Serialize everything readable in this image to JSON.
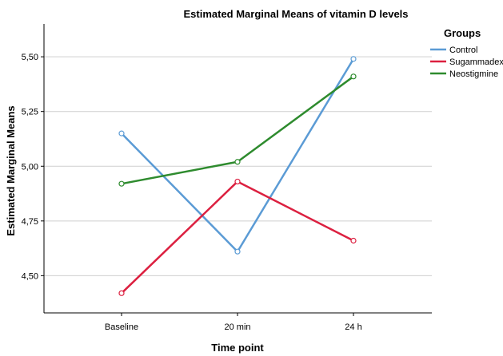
{
  "chart_data": {
    "type": "line",
    "title": "Estimated Marginal Means of vitamin D levels",
    "xlabel": "Time point",
    "ylabel": "Estimated Marginal Means",
    "categories": [
      "Baseline",
      "20 min",
      "24 h"
    ],
    "ylim": [
      4.33,
      5.65
    ],
    "yticks": [
      4.5,
      4.75,
      5.0,
      5.25,
      5.5
    ],
    "ytick_labels": [
      "4,50",
      "4,75",
      "5,00",
      "5,25",
      "5,50"
    ],
    "grid": "horizontal",
    "legend": {
      "title": "Groups",
      "placement": "right"
    },
    "series": [
      {
        "name": "Control",
        "color": "#5b9bd5",
        "values": [
          5.15,
          4.61,
          5.49
        ]
      },
      {
        "name": "Sugammadex",
        "color": "#dc2040",
        "values": [
          4.42,
          4.93,
          4.66
        ]
      },
      {
        "name": "Neostigmine",
        "color": "#2e8b2e",
        "values": [
          4.92,
          5.02,
          5.41
        ]
      }
    ]
  }
}
